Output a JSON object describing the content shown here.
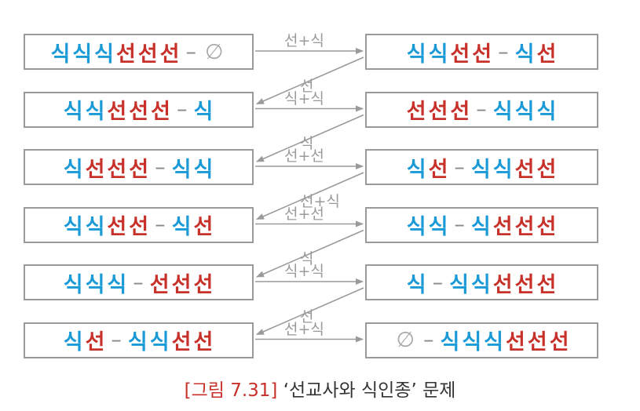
{
  "states_left": [
    [
      [
        "m",
        "식"
      ],
      [
        "m",
        "식"
      ],
      [
        "m",
        "식"
      ],
      [
        "c",
        "선"
      ],
      [
        "c",
        "선"
      ],
      [
        "c",
        "선"
      ],
      [
        "d",
        "–"
      ],
      [
        "e",
        "∅"
      ]
    ],
    [
      [
        "m",
        "식"
      ],
      [
        "m",
        "식"
      ],
      [
        "c",
        "선"
      ],
      [
        "c",
        "선"
      ],
      [
        "c",
        "선"
      ],
      [
        "d",
        "–"
      ],
      [
        "m",
        "식"
      ]
    ],
    [
      [
        "m",
        "식"
      ],
      [
        "c",
        "선"
      ],
      [
        "c",
        "선"
      ],
      [
        "c",
        "선"
      ],
      [
        "d",
        "–"
      ],
      [
        "m",
        "식"
      ],
      [
        "m",
        "식"
      ]
    ],
    [
      [
        "m",
        "식"
      ],
      [
        "m",
        "식"
      ],
      [
        "c",
        "선"
      ],
      [
        "c",
        "선"
      ],
      [
        "d",
        "–"
      ],
      [
        "m",
        "식"
      ],
      [
        "c",
        "선"
      ]
    ],
    [
      [
        "m",
        "식"
      ],
      [
        "m",
        "식"
      ],
      [
        "m",
        "식"
      ],
      [
        "d",
        "–"
      ],
      [
        "c",
        "선"
      ],
      [
        "c",
        "선"
      ],
      [
        "c",
        "선"
      ]
    ],
    [
      [
        "m",
        "식"
      ],
      [
        "c",
        "선"
      ],
      [
        "d",
        "–"
      ],
      [
        "m",
        "식"
      ],
      [
        "m",
        "식"
      ],
      [
        "c",
        "선"
      ],
      [
        "c",
        "선"
      ]
    ]
  ],
  "states_right": [
    [
      [
        "m",
        "식"
      ],
      [
        "m",
        "식"
      ],
      [
        "c",
        "선"
      ],
      [
        "c",
        "선"
      ],
      [
        "d",
        "–"
      ],
      [
        "m",
        "식"
      ],
      [
        "c",
        "선"
      ]
    ],
    [
      [
        "c",
        "선"
      ],
      [
        "c",
        "선"
      ],
      [
        "c",
        "선"
      ],
      [
        "d",
        "–"
      ],
      [
        "m",
        "식"
      ],
      [
        "m",
        "식"
      ],
      [
        "m",
        "식"
      ]
    ],
    [
      [
        "m",
        "식"
      ],
      [
        "c",
        "선"
      ],
      [
        "d",
        "–"
      ],
      [
        "m",
        "식"
      ],
      [
        "m",
        "식"
      ],
      [
        "c",
        "선"
      ],
      [
        "c",
        "선"
      ]
    ],
    [
      [
        "m",
        "식"
      ],
      [
        "m",
        "식"
      ],
      [
        "d",
        "–"
      ],
      [
        "m",
        "식"
      ],
      [
        "c",
        "선"
      ],
      [
        "c",
        "선"
      ],
      [
        "c",
        "선"
      ]
    ],
    [
      [
        "m",
        "식"
      ],
      [
        "d",
        "–"
      ],
      [
        "m",
        "식"
      ],
      [
        "m",
        "식"
      ],
      [
        "c",
        "선"
      ],
      [
        "c",
        "선"
      ],
      [
        "c",
        "선"
      ]
    ],
    [
      [
        "e",
        "∅"
      ],
      [
        "d",
        "–"
      ],
      [
        "m",
        "식"
      ],
      [
        "m",
        "식"
      ],
      [
        "m",
        "식"
      ],
      [
        "c",
        "선"
      ],
      [
        "c",
        "선"
      ],
      [
        "c",
        "선"
      ]
    ]
  ],
  "forward_labels": [
    "선+식",
    "식+식",
    "선+선",
    "선+선",
    "식+식",
    "선+식"
  ],
  "backward_labels": [
    "선",
    "식",
    "선+식",
    "식",
    "선"
  ],
  "caption": {
    "figure": "[그림 7.31]",
    "title": "‘선교사와 식인종’ 문제"
  },
  "colors": {
    "missionary": "#1a9ad6",
    "cannibal": "#c8302a",
    "border": "#9a9a9a",
    "arrow": "#9a9a9a"
  }
}
